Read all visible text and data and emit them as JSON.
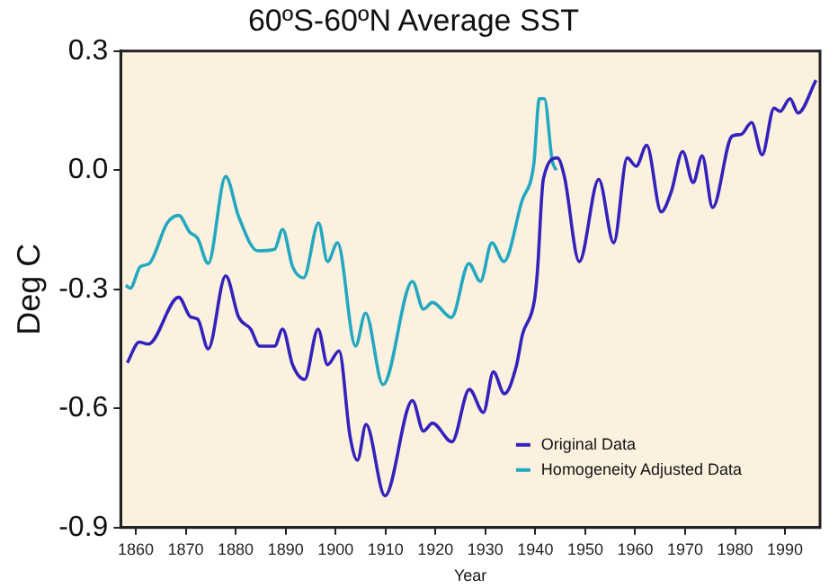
{
  "chart_data": {
    "type": "line",
    "title": "60ºS-60ºN Average SST",
    "xlabel": "Year",
    "ylabel": "Deg C",
    "xlim": [
      1857,
      1997
    ],
    "xticks": [
      1860,
      1870,
      1880,
      1890,
      1900,
      1910,
      1920,
      1930,
      1940,
      1950,
      1960,
      1970,
      1980,
      1990
    ],
    "ylim": [
      -0.9,
      0.3
    ],
    "yticks": [
      {
        "value": -0.9,
        "label": "-0.9"
      },
      {
        "value": -0.6,
        "label": "-0.6"
      },
      {
        "value": -0.3,
        "label": "-0.3"
      },
      {
        "value": 0,
        "label": "0.0"
      },
      {
        "value": 0.3,
        "label": "0.3"
      }
    ],
    "grid": false,
    "legend": "bottom right",
    "marker": "none",
    "line_style": "solid",
    "series": [
      {
        "name": "Original Data",
        "color": "#3322bb",
        "x": [
          1858.3,
          1860.7,
          1862.5,
          1868.6,
          1871,
          1872.4,
          1874.5,
          1878,
          1880.6,
          1883,
          1884.8,
          1887.8,
          1889.4,
          1891.4,
          1893.8,
          1896.5,
          1898.4,
          1900.7,
          1902.9,
          1904.4,
          1906.1,
          1909.9,
          1915.4,
          1917.6,
          1919.4,
          1923.3,
          1926.8,
          1929.6,
          1931.6,
          1933.8,
          1936.2,
          1937.4,
          1939.8,
          1940.4,
          1941.6,
          1944.4,
          1945.8,
          1948.8,
          1952.7,
          1955.7,
          1958.4,
          1960.2,
          1962.3,
          1965.2,
          1967.2,
          1969.5,
          1971.6,
          1973.4,
          1975.5,
          1979.4,
          1981.2,
          1983.3,
          1985.4,
          1987.8,
          1989,
          1991,
          1992.6,
          1996.2
        ],
        "values": [
          -0.485,
          -0.433,
          -0.438,
          -0.32,
          -0.37,
          -0.375,
          -0.45,
          -0.266,
          -0.37,
          -0.4,
          -0.443,
          -0.443,
          -0.4,
          -0.49,
          -0.527,
          -0.4,
          -0.49,
          -0.455,
          -0.67,
          -0.73,
          -0.64,
          -0.82,
          -0.58,
          -0.657,
          -0.637,
          -0.684,
          -0.552,
          -0.61,
          -0.508,
          -0.563,
          -0.493,
          -0.415,
          -0.329,
          -0.258,
          -0.023,
          0.031,
          -0.015,
          -0.23,
          -0.023,
          -0.183,
          0.031,
          0.01,
          0.063,
          -0.105,
          -0.055,
          0.047,
          -0.031,
          0.036,
          -0.094,
          0.086,
          0.09,
          0.12,
          0.039,
          0.156,
          0.148,
          0.18,
          0.144,
          0.227
        ]
      },
      {
        "name": "Homogeneity Adjusted Data",
        "color": "#22a8c0",
        "x": [
          1858,
          1858.9,
          1860.9,
          1862.7,
          1866.3,
          1868.6,
          1870.8,
          1872.4,
          1874.5,
          1878,
          1880.6,
          1884.4,
          1887.8,
          1889.4,
          1891.4,
          1893.6,
          1896.6,
          1898.4,
          1900.4,
          1904,
          1906,
          1909.5,
          1915.4,
          1917.6,
          1919.4,
          1923.2,
          1926.7,
          1929,
          1931.3,
          1933.7,
          1937.3,
          1939.7,
          1940.8,
          1941.8,
          1943.4,
          1944.2
        ],
        "values": [
          -0.29,
          -0.297,
          -0.243,
          -0.235,
          -0.133,
          -0.114,
          -0.156,
          -0.172,
          -0.235,
          -0.016,
          -0.117,
          -0.203,
          -0.199,
          -0.149,
          -0.243,
          -0.271,
          -0.133,
          -0.23,
          -0.183,
          -0.443,
          -0.36,
          -0.54,
          -0.28,
          -0.35,
          -0.333,
          -0.371,
          -0.235,
          -0.28,
          -0.183,
          -0.23,
          -0.078,
          0.016,
          0.18,
          0.18,
          0.023,
          0.0
        ]
      }
    ]
  }
}
